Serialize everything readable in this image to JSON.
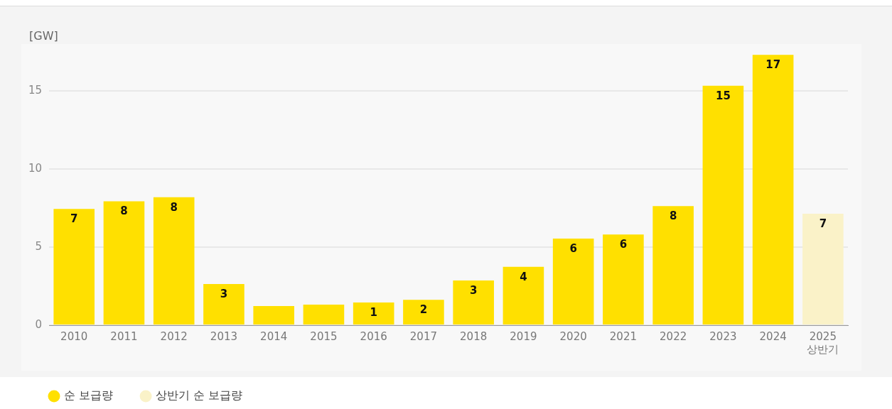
{
  "chart_data": {
    "type": "bar",
    "ylabel": "[GW]",
    "categories": [
      "2010",
      "2011",
      "2012",
      "2013",
      "2014",
      "2015",
      "2016",
      "2017",
      "2018",
      "2019",
      "2020",
      "2021",
      "2022",
      "2023",
      "2024",
      "2025 상반기"
    ],
    "series": [
      {
        "name": "순 보급량",
        "color": "#ffe000",
        "values": [
          7.44,
          7.93,
          8.19,
          2.64,
          1.23,
          1.32,
          1.45,
          1.63,
          2.86,
          3.74,
          5.55,
          5.81,
          7.62,
          15.33,
          17.31,
          null
        ],
        "value_labels": [
          "7",
          "8",
          "8",
          "3",
          null,
          null,
          "1",
          "2",
          "3",
          "4",
          "6",
          "6",
          "8",
          "15",
          "17",
          null
        ]
      },
      {
        "name": "상반기 순 보급량",
        "color": "#faf2c8",
        "values": [
          null,
          null,
          null,
          null,
          null,
          null,
          null,
          null,
          null,
          null,
          null,
          null,
          null,
          null,
          null,
          7.14
        ],
        "value_labels": [
          null,
          null,
          null,
          null,
          null,
          null,
          null,
          null,
          null,
          null,
          null,
          null,
          null,
          null,
          null,
          "7"
        ]
      }
    ],
    "ylim": [
      0,
      18
    ],
    "yticks": [
      0,
      5,
      10,
      15
    ],
    "grid": "y",
    "legend": "bottom left"
  }
}
